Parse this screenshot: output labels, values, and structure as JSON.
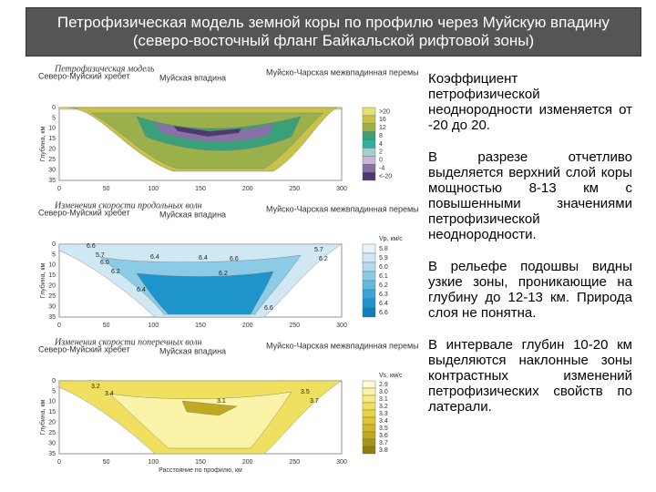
{
  "header": {
    "title": "Петрофизическая модель земной коры по профилю через Муйскую впадину (северо-восточный фланг Байкальской рифтовой зоны)"
  },
  "panels": [
    {
      "caption": "Петрофизическая модель",
      "regions": [
        "Северо-Муйский хребет",
        "Муйская впадина",
        "Муйско-Чарская межвпадинная перемычка"
      ],
      "y_label": "Глубина, км",
      "yticks": [
        "0",
        "5",
        "10",
        "15",
        "20",
        "25",
        "30",
        "35"
      ],
      "xticks": [
        "0",
        "50",
        "100",
        "150",
        "200",
        "250",
        "300"
      ],
      "legend": {
        "title": "",
        "labels": [
          ">20",
          "16",
          "12",
          "8",
          "4",
          "2",
          "0",
          "-4",
          "<-20"
        ],
        "colors": [
          "#e8e070",
          "#c9c24a",
          "#9bb04a",
          "#3aa07a",
          "#2fb0a0",
          "#a0d0c8",
          "#c8b8d8",
          "#8a70a8",
          "#4a3a70"
        ]
      },
      "contour_labels": []
    },
    {
      "caption": "Изменения скорости продольных волн",
      "regions": [
        "Северо-Муйский хребет",
        "Муйская впадина",
        "Муйско-Чарская межвпадинная перемычка"
      ],
      "y_label": "Глубина, км",
      "yticks": [
        "0",
        "5",
        "10",
        "15",
        "20",
        "25",
        "30",
        "35"
      ],
      "xticks": [
        "0",
        "50",
        "100",
        "150",
        "200",
        "250",
        "300"
      ],
      "legend": {
        "title": "Vp, км/с",
        "labels": [
          "5.8",
          "5.9",
          "6.0",
          "6.1",
          "6.2",
          "6.3",
          "6.4",
          "6.6"
        ],
        "colors": [
          "#e8f4fa",
          "#cfe8f4",
          "#b0dcee",
          "#8ccbe6",
          "#62b8de",
          "#3aa6d6",
          "#1e94cc",
          "#0c80bc"
        ]
      },
      "contour_labels": [
        "6.6",
        "5.7",
        "6.0",
        "6.4",
        "6.4",
        "6.6",
        "6.2",
        "5.7",
        "6.2",
        "6.4",
        "6.2",
        "6.6"
      ]
    },
    {
      "caption": "Изменения скорости поперечных волн",
      "regions": [
        "Северо-Муйский хребет",
        "Муйская впадина",
        "Муйско-Чарская межвпадинная перемычка"
      ],
      "y_label": "Глубина, км",
      "yticks": [
        "0",
        "5",
        "10",
        "15",
        "20",
        "25",
        "30",
        "35"
      ],
      "xticks": [
        "0",
        "50",
        "100",
        "150",
        "200",
        "250",
        "300"
      ],
      "x_label": "Расстояние по профилю, км",
      "legend": {
        "title": "Vs, км/с",
        "labels": [
          "2.9",
          "3.0",
          "3.1",
          "3.2",
          "3.3",
          "3.4",
          "3.5",
          "3.6",
          "3.7",
          "3.8"
        ],
        "colors": [
          "#fffbd0",
          "#fbf3a8",
          "#f6ea80",
          "#f0e060",
          "#e8d640",
          "#ddc830",
          "#d0b828",
          "#c0a820",
          "#a89418",
          "#907e10"
        ]
      },
      "contour_labels": [
        "3.2",
        "3.4",
        "3.1",
        "3.5",
        "3.7"
      ]
    }
  ],
  "paragraphs": [
    "Коэффициент петрофизической неоднородности изменяется от -20 до 20.",
    "В разрезе отчетливо выделяется верхний слой коры мощностью 8-13 км с повышенными значениями петрофизической неоднородности.",
    "В рельефе подошвы видны узкие зоны, проникающие на глубину до 12-13 км. Природа слоя не понятна.",
    "В интервале глубин 10-20 км выделяются наклонные зоны контрастных изменений петрофизических свойств по латерали."
  ]
}
